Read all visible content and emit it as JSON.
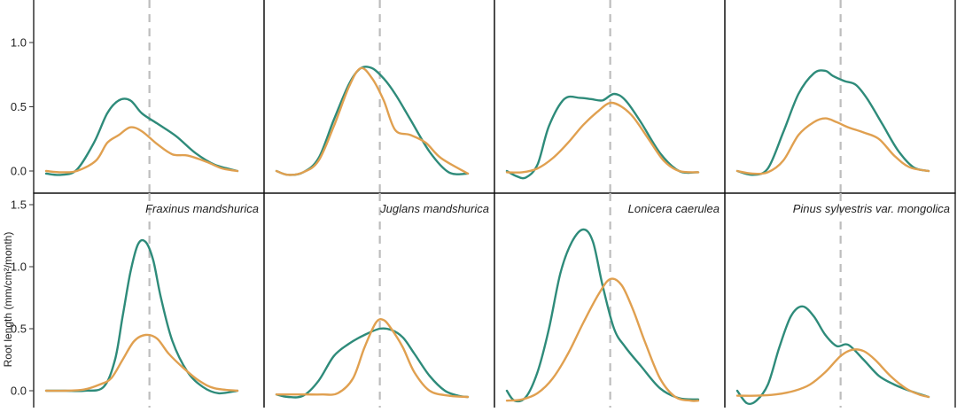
{
  "colors": {
    "series_a": "#2e8b7a",
    "series_b": "#e0a050",
    "vline": "#bdbdbd"
  },
  "y_axis": {
    "label": "Root length (mm/cm²/month)"
  },
  "chart_data": [
    {
      "type": "line",
      "title": "",
      "ylim": [
        -0.05,
        1.55
      ],
      "xlim": [
        0,
        1
      ],
      "vline_x": 0.54,
      "y_ticks": [
        0.0,
        0.5,
        1.0
      ],
      "series": [
        {
          "x": [
            0,
            0.08,
            0.16,
            0.25,
            0.32,
            0.38,
            0.44,
            0.5,
            0.58,
            0.68,
            0.78,
            0.88,
            1.0
          ],
          "values": [
            -0.02,
            -0.03,
            0.01,
            0.22,
            0.45,
            0.55,
            0.55,
            0.45,
            0.37,
            0.27,
            0.14,
            0.05,
            0.0
          ]
        },
        {
          "x": [
            0,
            0.08,
            0.16,
            0.26,
            0.32,
            0.38,
            0.44,
            0.5,
            0.58,
            0.66,
            0.74,
            0.84,
            0.92,
            1.0
          ],
          "values": [
            0.0,
            -0.01,
            0.0,
            0.08,
            0.22,
            0.28,
            0.34,
            0.31,
            0.21,
            0.13,
            0.12,
            0.07,
            0.02,
            0.0
          ]
        }
      ]
    },
    {
      "type": "line",
      "title": "",
      "ylim": [
        -0.05,
        1.55
      ],
      "xlim": [
        0,
        1
      ],
      "vline_x": 0.54,
      "y_ticks": [
        0.0,
        0.5,
        1.0
      ],
      "series": [
        {
          "x": [
            0,
            0.06,
            0.14,
            0.22,
            0.3,
            0.38,
            0.44,
            0.5,
            0.56,
            0.62,
            0.7,
            0.8,
            0.9,
            1.0
          ],
          "values": [
            0.0,
            -0.03,
            -0.01,
            0.1,
            0.4,
            0.68,
            0.8,
            0.8,
            0.72,
            0.6,
            0.4,
            0.15,
            -0.01,
            -0.02
          ]
        },
        {
          "x": [
            0,
            0.06,
            0.14,
            0.22,
            0.3,
            0.38,
            0.44,
            0.5,
            0.56,
            0.62,
            0.7,
            0.78,
            0.86,
            1.0
          ],
          "values": [
            0.0,
            -0.03,
            -0.01,
            0.08,
            0.35,
            0.66,
            0.8,
            0.72,
            0.55,
            0.32,
            0.28,
            0.22,
            0.1,
            -0.02
          ]
        }
      ]
    },
    {
      "type": "line",
      "title": "",
      "ylim": [
        -0.05,
        1.55
      ],
      "xlim": [
        0,
        1
      ],
      "vline_x": 0.54,
      "y_ticks": [
        0.0,
        0.5,
        1.0
      ],
      "series": [
        {
          "x": [
            0,
            0.05,
            0.1,
            0.16,
            0.22,
            0.3,
            0.38,
            0.44,
            0.5,
            0.56,
            0.62,
            0.7,
            0.8,
            0.9,
            1.0
          ],
          "values": [
            0.0,
            -0.04,
            -0.05,
            0.05,
            0.35,
            0.56,
            0.57,
            0.56,
            0.55,
            0.6,
            0.55,
            0.38,
            0.14,
            0.0,
            -0.01
          ]
        },
        {
          "x": [
            0,
            0.08,
            0.16,
            0.24,
            0.32,
            0.4,
            0.48,
            0.54,
            0.6,
            0.66,
            0.74,
            0.82,
            0.9,
            1.0
          ],
          "values": [
            -0.01,
            -0.01,
            0.02,
            0.1,
            0.22,
            0.36,
            0.47,
            0.53,
            0.5,
            0.42,
            0.25,
            0.08,
            0.0,
            -0.01
          ]
        }
      ]
    },
    {
      "type": "line",
      "title": "",
      "ylim": [
        -0.05,
        1.55
      ],
      "xlim": [
        0,
        1
      ],
      "vline_x": 0.54,
      "y_ticks": [
        0.0,
        0.5,
        1.0
      ],
      "series": [
        {
          "x": [
            0,
            0.08,
            0.16,
            0.24,
            0.32,
            0.4,
            0.46,
            0.5,
            0.56,
            0.62,
            0.68,
            0.76,
            0.84,
            0.92,
            1.0
          ],
          "values": [
            0.0,
            -0.03,
            0.02,
            0.3,
            0.6,
            0.76,
            0.78,
            0.74,
            0.7,
            0.67,
            0.56,
            0.36,
            0.16,
            0.03,
            0.0
          ]
        },
        {
          "x": [
            0,
            0.08,
            0.16,
            0.24,
            0.32,
            0.4,
            0.46,
            0.52,
            0.58,
            0.66,
            0.74,
            0.82,
            0.9,
            1.0
          ],
          "values": [
            0.0,
            -0.02,
            -0.01,
            0.08,
            0.28,
            0.38,
            0.41,
            0.38,
            0.34,
            0.3,
            0.25,
            0.12,
            0.03,
            0.0
          ]
        }
      ]
    },
    {
      "type": "line",
      "title": "Fraxinus mandshurica",
      "ylim": [
        -0.05,
        1.55
      ],
      "xlim": [
        0,
        1
      ],
      "vline_x": 0.54,
      "y_ticks": [
        0.0,
        0.5,
        1.0,
        1.5
      ],
      "series": [
        {
          "x": [
            0,
            0.1,
            0.2,
            0.3,
            0.36,
            0.4,
            0.44,
            0.48,
            0.52,
            0.56,
            0.6,
            0.66,
            0.74,
            0.82,
            0.9,
            1.0
          ],
          "values": [
            0.0,
            0.0,
            0.0,
            0.03,
            0.25,
            0.6,
            0.95,
            1.18,
            1.2,
            1.05,
            0.75,
            0.4,
            0.15,
            0.03,
            -0.02,
            0.0
          ]
        },
        {
          "x": [
            0,
            0.1,
            0.2,
            0.28,
            0.34,
            0.4,
            0.46,
            0.52,
            0.58,
            0.64,
            0.72,
            0.8,
            0.88,
            1.0
          ],
          "values": [
            0.0,
            0.0,
            0.01,
            0.05,
            0.1,
            0.25,
            0.4,
            0.45,
            0.42,
            0.3,
            0.18,
            0.08,
            0.02,
            0.0
          ]
        }
      ]
    },
    {
      "type": "line",
      "title": "Juglans mandshurica",
      "ylim": [
        -0.05,
        1.55
      ],
      "xlim": [
        0,
        1
      ],
      "vline_x": 0.54,
      "y_ticks": [
        0.0,
        0.5,
        1.0,
        1.5
      ],
      "series": [
        {
          "x": [
            0,
            0.06,
            0.14,
            0.22,
            0.3,
            0.38,
            0.46,
            0.54,
            0.6,
            0.66,
            0.72,
            0.8,
            0.88,
            0.95,
            1.0
          ],
          "values": [
            -0.03,
            -0.05,
            -0.04,
            0.08,
            0.28,
            0.38,
            0.45,
            0.5,
            0.49,
            0.43,
            0.3,
            0.12,
            0.0,
            -0.04,
            -0.05
          ]
        },
        {
          "x": [
            0,
            0.08,
            0.16,
            0.24,
            0.32,
            0.4,
            0.46,
            0.52,
            0.56,
            0.6,
            0.66,
            0.72,
            0.8,
            0.9,
            1.0
          ],
          "values": [
            -0.03,
            -0.03,
            -0.03,
            -0.03,
            -0.02,
            0.1,
            0.35,
            0.55,
            0.57,
            0.5,
            0.35,
            0.15,
            0.0,
            -0.04,
            -0.05
          ]
        }
      ]
    },
    {
      "type": "line",
      "title": "Lonicera caerulea",
      "ylim": [
        -0.05,
        1.55
      ],
      "xlim": [
        0,
        1
      ],
      "vline_x": 0.54,
      "y_ticks": [
        0.0,
        0.5,
        1.0,
        1.5
      ],
      "series": [
        {
          "x": [
            0,
            0.04,
            0.1,
            0.16,
            0.22,
            0.28,
            0.34,
            0.4,
            0.45,
            0.5,
            0.56,
            0.62,
            0.7,
            0.8,
            0.9,
            1.0
          ],
          "values": [
            0.0,
            -0.08,
            -0.05,
            0.15,
            0.5,
            0.95,
            1.2,
            1.3,
            1.2,
            0.85,
            0.5,
            0.35,
            0.2,
            0.02,
            -0.06,
            -0.07
          ]
        },
        {
          "x": [
            0,
            0.08,
            0.16,
            0.24,
            0.32,
            0.4,
            0.48,
            0.54,
            0.6,
            0.66,
            0.72,
            0.8,
            0.88,
            0.96,
            1.0
          ],
          "values": [
            -0.08,
            -0.07,
            -0.02,
            0.1,
            0.3,
            0.55,
            0.78,
            0.9,
            0.85,
            0.65,
            0.4,
            0.1,
            -0.05,
            -0.08,
            -0.08
          ]
        }
      ]
    },
    {
      "type": "line",
      "title": "Pinus sylvestris var.  mongolica",
      "ylim": [
        -0.05,
        1.55
      ],
      "xlim": [
        0,
        1
      ],
      "vline_x": 0.54,
      "y_ticks": [
        0.0,
        0.5,
        1.0,
        1.5
      ],
      "series": [
        {
          "x": [
            0,
            0.05,
            0.1,
            0.16,
            0.22,
            0.28,
            0.34,
            0.4,
            0.46,
            0.52,
            0.58,
            0.66,
            0.74,
            0.82,
            0.9,
            1.0
          ],
          "values": [
            0.0,
            -0.1,
            -0.08,
            0.05,
            0.35,
            0.6,
            0.68,
            0.6,
            0.45,
            0.36,
            0.37,
            0.25,
            0.12,
            0.05,
            0.0,
            -0.05
          ]
        },
        {
          "x": [
            0,
            0.1,
            0.2,
            0.3,
            0.38,
            0.46,
            0.54,
            0.6,
            0.66,
            0.72,
            0.8,
            0.88,
            0.95,
            1.0
          ],
          "values": [
            -0.04,
            -0.04,
            -0.03,
            0.0,
            0.05,
            0.15,
            0.28,
            0.33,
            0.32,
            0.25,
            0.12,
            0.02,
            -0.03,
            -0.05
          ]
        }
      ]
    }
  ]
}
